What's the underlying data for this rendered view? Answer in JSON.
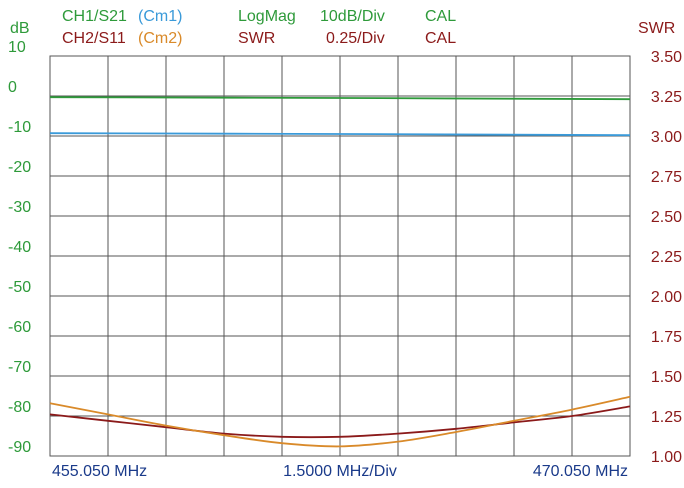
{
  "header": {
    "row1": {
      "channel": "CH1/S21",
      "marker": "(Cm1)",
      "format": "LogMag",
      "scale": "10dB/Div",
      "cal": "CAL"
    },
    "row2": {
      "channel": "CH2/S11",
      "marker": "(Cm2)",
      "format": "SWR",
      "scale": "0.25/Div",
      "cal": "CAL"
    }
  },
  "colors": {
    "green": "#2e9a3a",
    "darkred": "#8b1a1a",
    "blue": "#3a9ad9",
    "orange": "#d98a2a",
    "grid": "#555555"
  },
  "chart_data": {
    "type": "line",
    "left_axis": {
      "unit": "dB",
      "ticks": [
        "10",
        "0",
        "-10",
        "-20",
        "-30",
        "-40",
        "-50",
        "-60",
        "-70",
        "-80",
        "-90"
      ],
      "ylim": [
        -90,
        10
      ]
    },
    "right_axis": {
      "unit": "SWR",
      "ticks": [
        "3.50",
        "3.25",
        "3.00",
        "2.75",
        "2.50",
        "2.25",
        "2.00",
        "1.75",
        "1.50",
        "1.25",
        "1.00"
      ],
      "ylim": [
        1.0,
        3.5
      ]
    },
    "x_axis": {
      "start": "455.050 MHz",
      "center": "1.5000 MHz/Div",
      "stop": "470.050 MHz",
      "xlim": [
        455.05,
        470.05
      ],
      "divisions": 10
    },
    "grid": true,
    "series": [
      {
        "name": "CH1/S21",
        "axis": "left",
        "color": "#2e9a3a",
        "x": [
          455.05,
          462.55,
          470.05
        ],
        "values": [
          -0.3,
          -0.5,
          -0.8
        ]
      },
      {
        "name": "(Cm1)",
        "axis": "left",
        "color": "#3a9ad9",
        "x": [
          455.05,
          462.55,
          470.05
        ],
        "values": [
          -9.3,
          -9.5,
          -9.8
        ]
      },
      {
        "name": "CH2/S11",
        "axis": "right",
        "color": "#8b1a1a",
        "x": [
          455.05,
          456.55,
          458.05,
          459.55,
          461.05,
          462.55,
          464.05,
          465.55,
          467.05,
          468.55,
          470.05
        ],
        "values": [
          1.26,
          1.22,
          1.18,
          1.14,
          1.12,
          1.12,
          1.14,
          1.17,
          1.21,
          1.25,
          1.31
        ]
      },
      {
        "name": "(Cm2)",
        "axis": "right",
        "color": "#d98a2a",
        "x": [
          455.05,
          456.55,
          458.05,
          459.55,
          461.05,
          462.55,
          464.05,
          465.55,
          467.05,
          468.55,
          470.05
        ],
        "values": [
          1.33,
          1.26,
          1.19,
          1.13,
          1.08,
          1.06,
          1.09,
          1.15,
          1.22,
          1.29,
          1.37
        ]
      }
    ]
  }
}
